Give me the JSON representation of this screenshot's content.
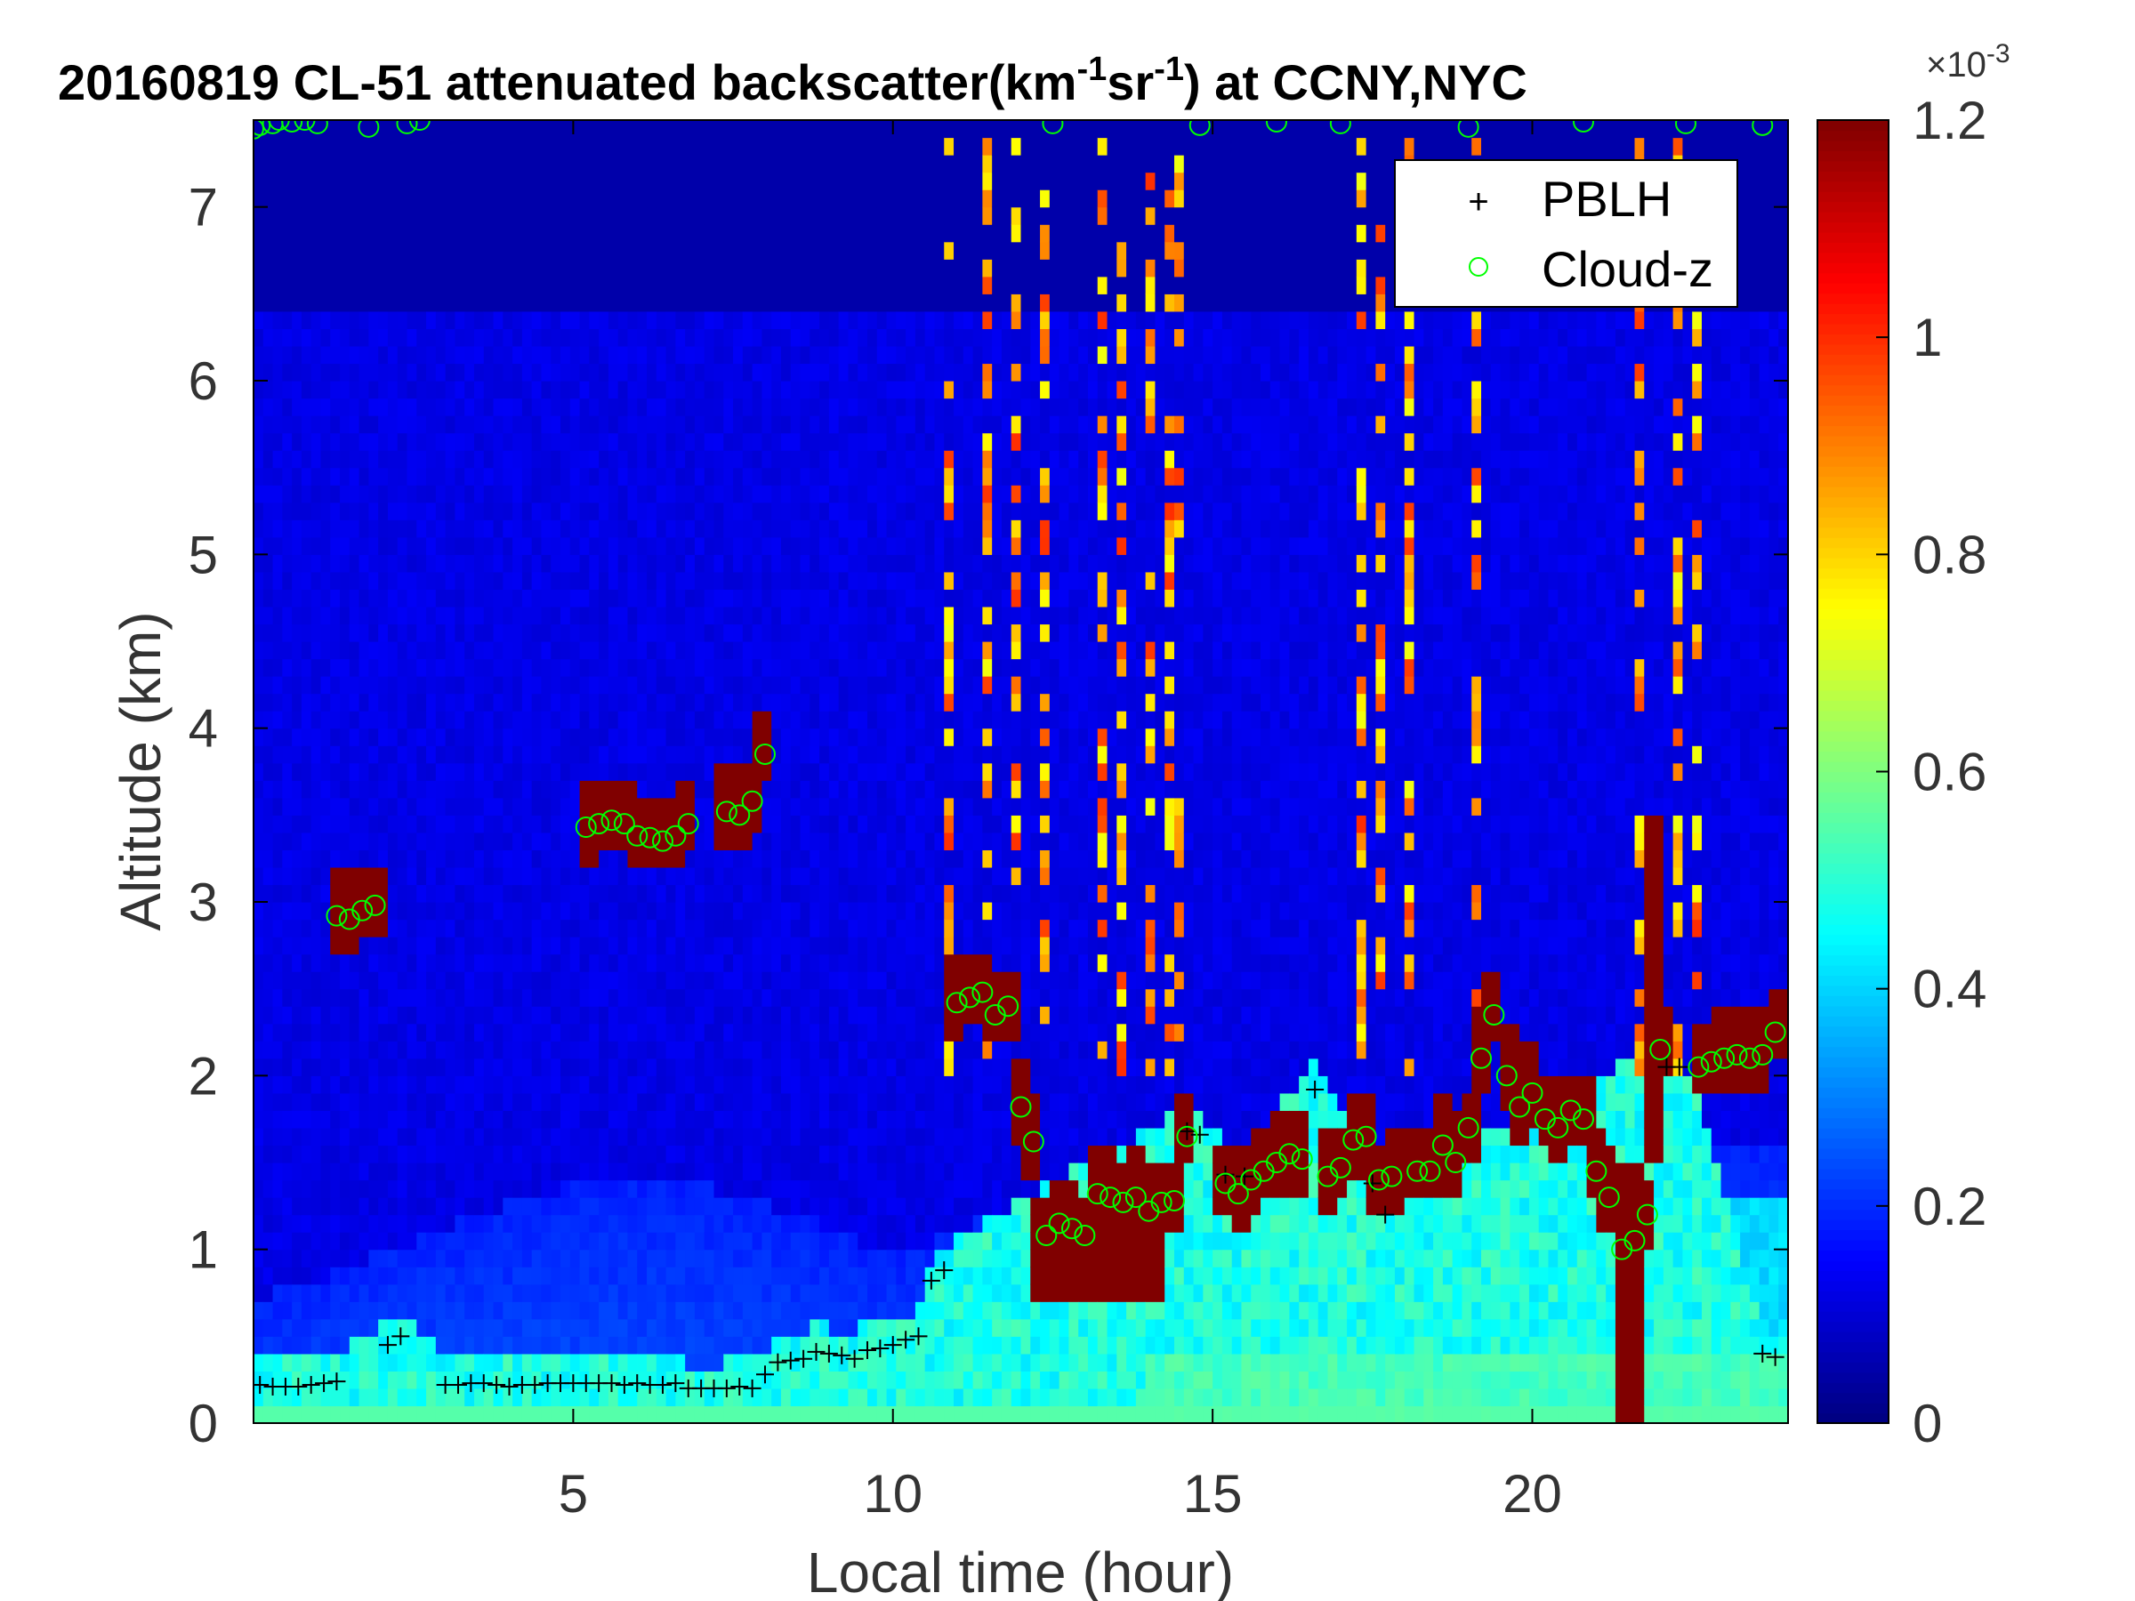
{
  "chart_data": {
    "type": "heatmap",
    "title": "20160819  CL-51 attenuated backscatter(km",
    "title_sup1": "-1",
    "title_mid": "sr",
    "title_sup2": "-1",
    "title_end": ") at CCNY,NYC",
    "xlabel": "Local time (hour)",
    "ylabel": "Altitude (km)",
    "xlim": [
      0,
      24
    ],
    "ylim": [
      0,
      7.5
    ],
    "xticks": [
      "5",
      "10",
      "15",
      "20"
    ],
    "xtick_values": [
      5,
      10,
      15,
      20
    ],
    "yticks": [
      "0",
      "1",
      "2",
      "3",
      "4",
      "5",
      "6",
      "7"
    ],
    "ytick_values": [
      0,
      1,
      2,
      3,
      4,
      5,
      6,
      7
    ],
    "colorbar": {
      "min": 0,
      "max": 1.2,
      "ticks": [
        "0",
        "0.2",
        "0.4",
        "0.6",
        "0.8",
        "1",
        "1.2"
      ],
      "tick_values": [
        0,
        0.2,
        0.4,
        0.6,
        0.8,
        1.0,
        1.2
      ],
      "exponent_base": "×10",
      "exponent": "-3",
      "colormap": "jet"
    },
    "legend": {
      "placement": "top-right",
      "entries": [
        {
          "name": "PBLH",
          "marker": "+",
          "color": "#000000"
        },
        {
          "name": "Cloud-z",
          "marker": "o",
          "color": "#00ff00"
        }
      ]
    },
    "pblh": {
      "x": [
        0.1,
        0.3,
        0.5,
        0.7,
        0.9,
        1.1,
        1.3,
        2.1,
        2.3,
        3.0,
        3.2,
        3.4,
        3.6,
        3.8,
        4.0,
        4.2,
        4.4,
        4.6,
        4.8,
        5.0,
        5.2,
        5.4,
        5.6,
        5.8,
        6.0,
        6.2,
        6.4,
        6.6,
        6.8,
        7.0,
        7.2,
        7.4,
        7.6,
        7.8,
        8.0,
        8.2,
        8.4,
        8.6,
        8.8,
        9.0,
        9.2,
        9.4,
        9.6,
        9.8,
        10.0,
        10.2,
        10.4,
        10.6,
        10.8,
        14.6,
        14.8,
        15.2,
        15.5,
        16.6,
        17.5,
        17.7,
        22.1,
        22.3,
        23.6,
        23.8
      ],
      "y": [
        0.22,
        0.21,
        0.21,
        0.21,
        0.22,
        0.23,
        0.24,
        0.45,
        0.5,
        0.22,
        0.22,
        0.23,
        0.23,
        0.22,
        0.21,
        0.22,
        0.22,
        0.23,
        0.23,
        0.23,
        0.23,
        0.23,
        0.23,
        0.22,
        0.23,
        0.22,
        0.22,
        0.23,
        0.2,
        0.2,
        0.2,
        0.2,
        0.21,
        0.2,
        0.28,
        0.35,
        0.36,
        0.37,
        0.41,
        0.4,
        0.39,
        0.37,
        0.42,
        0.43,
        0.45,
        0.48,
        0.5,
        0.82,
        0.88,
        1.68,
        1.66,
        1.43,
        1.42,
        1.92,
        1.38,
        1.2,
        2.05,
        2.05,
        0.4,
        0.38
      ]
    },
    "cloud_z": {
      "x": [
        1.3,
        1.5,
        1.7,
        1.9,
        5.2,
        5.4,
        5.6,
        5.8,
        6.0,
        6.2,
        6.4,
        6.6,
        6.8,
        7.4,
        7.6,
        7.8,
        8.0,
        11.0,
        11.2,
        11.4,
        11.6,
        11.8,
        12.0,
        12.2,
        12.4,
        12.6,
        12.8,
        13.0,
        13.2,
        13.4,
        13.6,
        13.8,
        14.0,
        14.2,
        14.4,
        14.6,
        15.2,
        15.4,
        15.6,
        15.8,
        16.0,
        16.2,
        16.4,
        16.8,
        17.0,
        17.2,
        17.4,
        17.6,
        17.8,
        18.2,
        18.4,
        18.6,
        18.8,
        19.0,
        19.2,
        19.4,
        19.6,
        19.8,
        20.0,
        20.2,
        20.4,
        20.6,
        20.8,
        21.0,
        21.2,
        21.4,
        21.6,
        21.8,
        22.0,
        22.6,
        22.8,
        23.0,
        23.2,
        23.4,
        23.6,
        23.8
      ],
      "y": [
        2.92,
        2.9,
        2.95,
        2.98,
        3.43,
        3.45,
        3.47,
        3.45,
        3.38,
        3.37,
        3.35,
        3.38,
        3.45,
        3.52,
        3.5,
        3.58,
        3.85,
        2.42,
        2.45,
        2.48,
        2.35,
        2.4,
        1.82,
        1.62,
        1.08,
        1.15,
        1.12,
        1.08,
        1.32,
        1.3,
        1.27,
        1.3,
        1.22,
        1.27,
        1.28,
        1.65,
        1.38,
        1.32,
        1.4,
        1.45,
        1.5,
        1.55,
        1.52,
        1.42,
        1.47,
        1.63,
        1.65,
        1.4,
        1.42,
        1.45,
        1.45,
        1.6,
        1.5,
        1.7,
        2.1,
        2.35,
        2.0,
        1.82,
        1.9,
        1.75,
        1.7,
        1.8,
        1.75,
        1.45,
        1.3,
        1.0,
        1.05,
        1.2,
        2.15,
        2.05,
        2.08,
        2.1,
        2.12,
        2.1,
        2.12,
        2.25
      ]
    },
    "cloud_z_top": {
      "x": [
        0.0,
        0.1,
        0.3,
        0.4,
        0.6,
        0.8,
        1.0,
        1.8,
        2.4,
        2.6,
        12.5,
        14.8,
        16.0,
        17.0,
        19.0,
        20.8,
        22.4,
        23.6
      ],
      "y": [
        7.45,
        7.47,
        7.48,
        7.5,
        7.49,
        7.5,
        7.48,
        7.46,
        7.48,
        7.5,
        7.48,
        7.47,
        7.49,
        7.48,
        7.46,
        7.49,
        7.48,
        7.47
      ]
    }
  }
}
